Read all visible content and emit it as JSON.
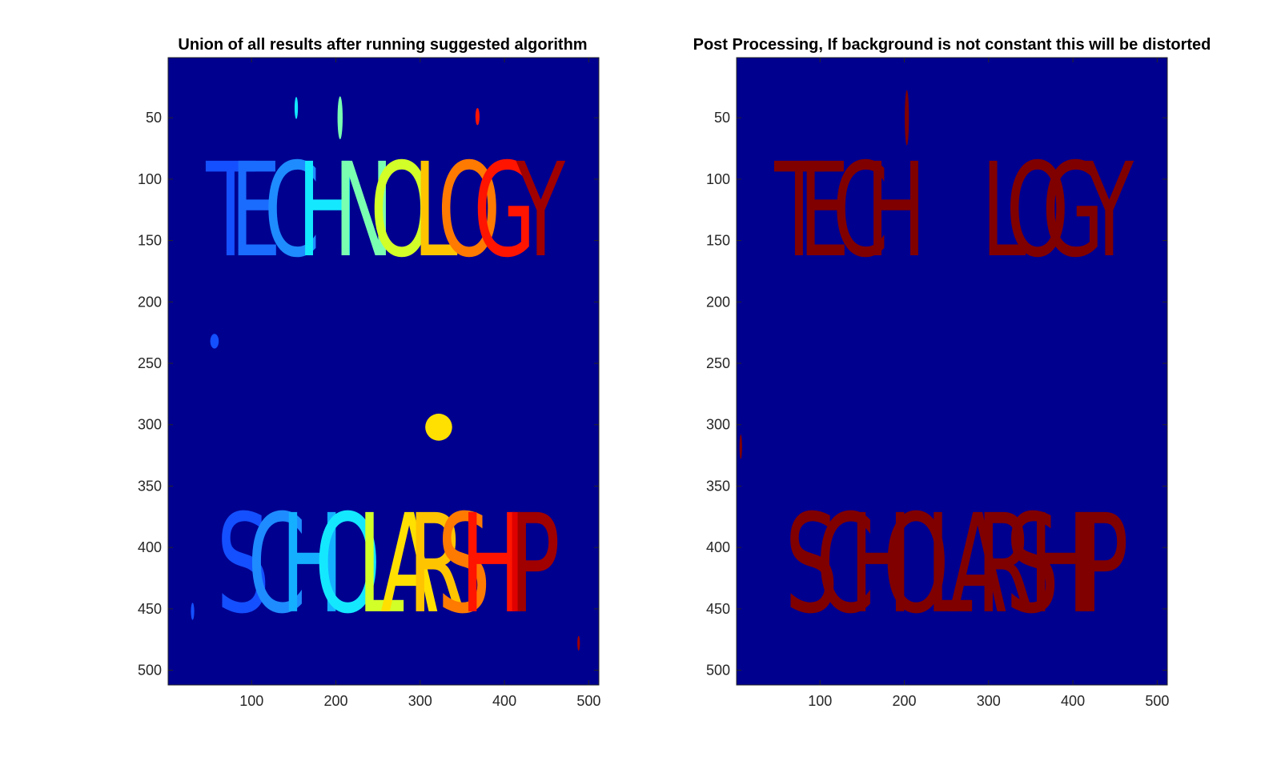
{
  "chart_data": [
    {
      "type": "heatmap",
      "title": "Union of all results after running suggested algorithm",
      "xlabel": "",
      "ylabel": "",
      "xlim": [
        1,
        512
      ],
      "ylim": [
        512,
        1
      ],
      "xticks": [
        "100",
        "200",
        "300",
        "400",
        "500"
      ],
      "yticks": [
        "50",
        "100",
        "150",
        "200",
        "250",
        "300",
        "350",
        "400",
        "450",
        "500"
      ],
      "colormap": "jet",
      "background_color": "#00008f",
      "grid": false,
      "legend": "none",
      "visible_text_in_image": [
        {
          "text": "TECHNOLOGY",
          "letters": [
            {
              "ch": "T",
              "x": 75,
              "color": "#1450ff"
            },
            {
              "ch": "E",
              "x": 105,
              "color": "#1a6cff"
            },
            {
              "ch": "C",
              "x": 148,
              "color": "#1e8cff"
            },
            {
              "ch": "H",
              "x": 190,
              "color": "#14e8ff"
            },
            {
              "ch": "N",
              "x": 233,
              "color": "#7affb0"
            },
            {
              "ch": "O",
              "x": 278,
              "color": "#d2ff28"
            },
            {
              "ch": "L",
              "x": 318,
              "color": "#ffc400"
            },
            {
              "ch": "O",
              "x": 358,
              "color": "#ff7a00"
            },
            {
              "ch": "G",
              "x": 400,
              "color": "#ff1400"
            },
            {
              "ch": "Y",
              "x": 443,
              "color": "#a00000"
            }
          ]
        },
        {
          "text": "SCHOLARSHIP",
          "letters": [
            {
              "ch": "S",
              "x": 90,
              "color": "#1450ff"
            },
            {
              "ch": "C",
              "x": 130,
              "color": "#1e8cff"
            },
            {
              "ch": "H",
              "x": 172,
              "color": "#14b0ff"
            },
            {
              "ch": "O",
              "x": 214,
              "color": "#14e8ff"
            },
            {
              "ch": "L",
              "x": 253,
              "color": "#d2ff28"
            },
            {
              "ch": "A",
              "x": 287,
              "color": "#ffe000"
            },
            {
              "ch": "R",
              "x": 320,
              "color": "#ffc400"
            },
            {
              "ch": "S",
              "x": 352,
              "color": "#ff7a00"
            },
            {
              "ch": "H",
              "x": 385,
              "color": "#ff1400"
            },
            {
              "ch": "I",
              "x": 414,
              "color": "#e00000"
            },
            {
              "ch": "P",
              "x": 436,
              "color": "#a00000"
            }
          ]
        }
      ],
      "blobs": [
        {
          "x": 322,
          "y": 302,
          "w": 32,
          "h": 22,
          "color": "#ffe000"
        },
        {
          "x": 368,
          "y": 49,
          "w": 5,
          "h": 14,
          "color": "#ff1400"
        },
        {
          "x": 56,
          "y": 232,
          "w": 10,
          "h": 12,
          "color": "#1450ff"
        },
        {
          "x": 30,
          "y": 452,
          "w": 4,
          "h": 14,
          "color": "#1450ff"
        },
        {
          "x": 488,
          "y": 478,
          "w": 3,
          "h": 12,
          "color": "#a00000"
        },
        {
          "x": 205,
          "y": 50,
          "w": 6,
          "h": 35,
          "color": "#7affb0"
        },
        {
          "x": 153,
          "y": 42,
          "w": 4,
          "h": 18,
          "color": "#14e8ff"
        }
      ]
    },
    {
      "type": "heatmap",
      "title": "Post Processing, If background is not constant this will be distorted",
      "xlabel": "",
      "ylabel": "",
      "xlim": [
        1,
        512
      ],
      "ylim": [
        512,
        1
      ],
      "xticks": [
        "100",
        "200",
        "300",
        "400",
        "500"
      ],
      "yticks": [
        "50",
        "100",
        "150",
        "200",
        "250",
        "300",
        "350",
        "400",
        "450",
        "500"
      ],
      "colormap": "jet",
      "background_color": "#00008f",
      "grid": false,
      "legend": "none",
      "visible_text_in_image": [
        {
          "text": "TECH LOGY",
          "letters": [
            {
              "ch": "T",
              "x": 75,
              "color": "#800000"
            },
            {
              "ch": "E",
              "x": 105,
              "color": "#800000"
            },
            {
              "ch": "C",
              "x": 148,
              "color": "#800000"
            },
            {
              "ch": "H",
              "x": 190,
              "color": "#800000"
            },
            {
              "ch": "L",
              "x": 318,
              "color": "#800000"
            },
            {
              "ch": "O",
              "x": 358,
              "color": "#800000"
            },
            {
              "ch": "G",
              "x": 400,
              "color": "#800000"
            },
            {
              "ch": "Y",
              "x": 443,
              "color": "#800000"
            }
          ]
        },
        {
          "text": "SCHOLARSHIP",
          "letters": [
            {
              "ch": "S",
              "x": 90,
              "color": "#800000"
            },
            {
              "ch": "C",
              "x": 130,
              "color": "#800000"
            },
            {
              "ch": "H",
              "x": 172,
              "color": "#800000"
            },
            {
              "ch": "O",
              "x": 214,
              "color": "#800000"
            },
            {
              "ch": "L",
              "x": 253,
              "color": "#800000"
            },
            {
              "ch": "A",
              "x": 287,
              "color": "#800000"
            },
            {
              "ch": "R",
              "x": 320,
              "color": "#800000"
            },
            {
              "ch": "S",
              "x": 352,
              "color": "#800000"
            },
            {
              "ch": "H",
              "x": 385,
              "color": "#800000"
            },
            {
              "ch": "I",
              "x": 414,
              "color": "#800000"
            },
            {
              "ch": "P",
              "x": 436,
              "color": "#800000"
            }
          ]
        }
      ],
      "blobs": [
        {
          "x": 203,
          "y": 50,
          "w": 5,
          "h": 45,
          "color": "#800000"
        },
        {
          "x": 6,
          "y": 318,
          "w": 3,
          "h": 20,
          "color": "#800000"
        }
      ]
    }
  ]
}
